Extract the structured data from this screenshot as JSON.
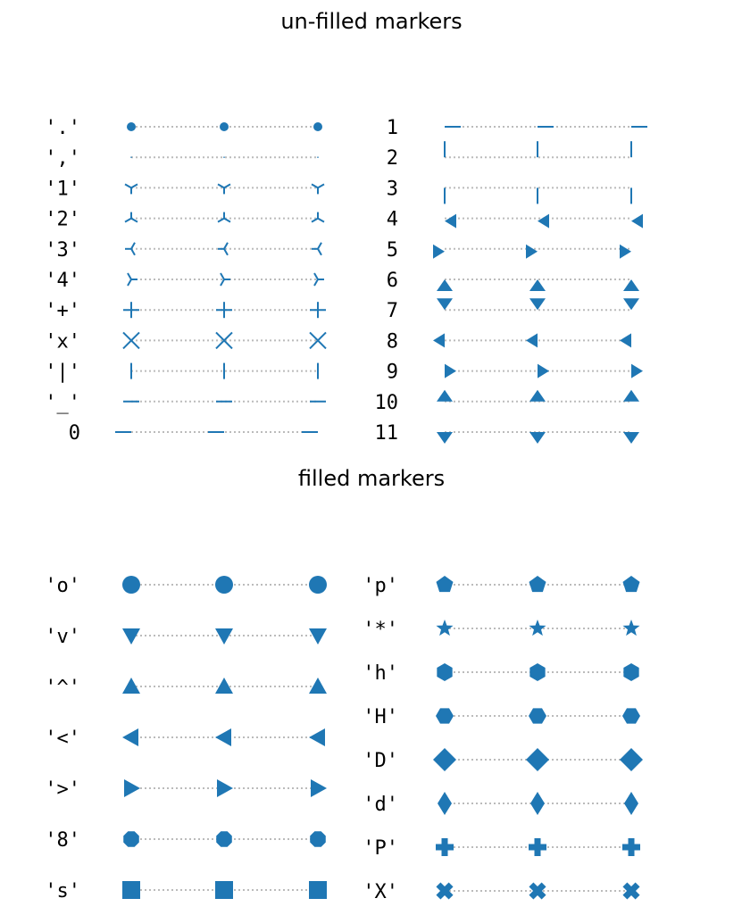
{
  "chart_data": [
    {
      "type": "scatter",
      "title": "un-filled markers",
      "columns": [
        {
          "labels": [
            "'.'",
            "','",
            "'1'",
            "'2'",
            "'3'",
            "'4'",
            "'+'",
            "'x'",
            "'|'",
            "'_'",
            "0"
          ],
          "markers": [
            "point",
            "pixel",
            "tri_down",
            "tri_up",
            "tri_left",
            "tri_right",
            "plus",
            "x",
            "vline",
            "hline",
            "tickleft"
          ]
        },
        {
          "labels": [
            "1",
            "2",
            "3",
            "4",
            "5",
            "6",
            "7",
            "8",
            "9",
            "10",
            "11"
          ],
          "markers": [
            "tickright",
            "tickup",
            "tickdown",
            "caretleft",
            "caretright",
            "caretup",
            "caretdown",
            "caretleftbase",
            "caretrightbase",
            "caretupbase",
            "caretdownbase"
          ]
        }
      ],
      "x": [
        0,
        1,
        2
      ]
    },
    {
      "type": "scatter",
      "title": "filled markers",
      "columns": [
        {
          "labels": [
            "'o'",
            "'v'",
            "'^'",
            "'<'",
            "'>'",
            "'8'",
            "'s'"
          ],
          "markers": [
            "circle",
            "triangle_down",
            "triangle_up",
            "triangle_left",
            "triangle_right",
            "octagon",
            "square"
          ]
        },
        {
          "labels": [
            "'p'",
            "'*'",
            "'h'",
            "'H'",
            "'D'",
            "'d'",
            "'P'",
            "'X'"
          ],
          "markers": [
            "pentagon",
            "star",
            "hexagon1",
            "hexagon2",
            "diamond",
            "thin_diamond",
            "plus_filled",
            "x_filled"
          ]
        }
      ],
      "x": [
        0,
        1,
        2
      ]
    }
  ],
  "colors": {
    "marker": "#1f77b4",
    "line": "#bbbbbb"
  }
}
